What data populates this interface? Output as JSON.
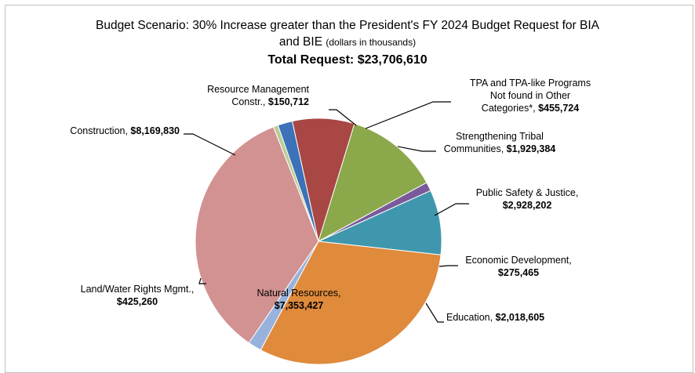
{
  "chart_data": {
    "type": "pie",
    "title_line1": "Budget Scenario: 30% Increase greater than the President's FY 2024 Budget Request for BIA",
    "title_line2": "and BIE",
    "title_note": "(dollars in thousands)",
    "total_label": "Total Request:",
    "total_value": "$23,706,610",
    "slices": [
      {
        "name_lines": [
          "Resource Management",
          "Constr.,"
        ],
        "value_label": "$150,712",
        "value": 150712,
        "color": "#b9cd96"
      },
      {
        "name_lines": [
          "TPA and TPA-like Programs",
          "Not found in Other",
          "Categories*,"
        ],
        "value_label": "$455,724",
        "value": 455724,
        "color": "#3d71b8"
      },
      {
        "name_lines": [
          "Strengthening Tribal",
          "Communities,"
        ],
        "value_label": "$1,929,384",
        "value": 1929384,
        "color": "#a84744"
      },
      {
        "name_lines": [
          "Public Safety & Justice,"
        ],
        "value_label": "$2,928,202",
        "value": 2928202,
        "color": "#8ba84a"
      },
      {
        "name_lines": [
          "Economic Development,"
        ],
        "value_label": "$275,465",
        "value": 275465,
        "color": "#7a5a9a"
      },
      {
        "name_lines": [
          "Education,"
        ],
        "value_label": "$2,018,605",
        "value": 2018605,
        "color": "#3f97ad"
      },
      {
        "name_lines": [
          "Natural Resources,"
        ],
        "value_label": "$7,353,427",
        "value": 7353427,
        "color": "#e08a3c"
      },
      {
        "name_lines": [
          "Land/Water Rights Mgmt.,"
        ],
        "value_label": "$425,260",
        "value": 425260,
        "color": "#97b2dc"
      },
      {
        "name_lines": [
          "Construction,"
        ],
        "value_label": "$8,169,830",
        "value": 8169830,
        "color": "#d29291"
      }
    ]
  }
}
